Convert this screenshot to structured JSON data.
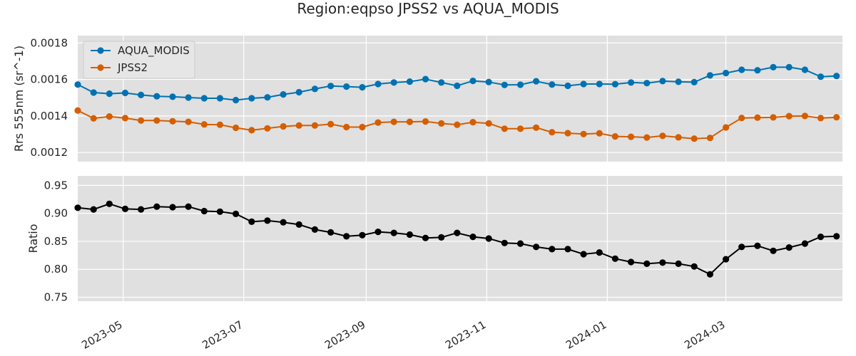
{
  "figure": {
    "title": "Region:eqpso JPSS2 vs AQUA_MODIS"
  },
  "chart_data": [
    {
      "type": "line",
      "ylabel": "Rrs 555nm (sr^-1)",
      "xlabel": "",
      "ylim": [
        0.00115,
        0.00184
      ],
      "xlim": [
        "2023-04-08",
        "2024-04-29"
      ],
      "yticks": [
        "0.0012",
        "0.0014",
        "0.0016",
        "0.0018"
      ],
      "grid": true,
      "legend": "top-left",
      "x": [
        "2023-04-08",
        "2023-04-16",
        "2023-04-24",
        "2023-05-02",
        "2023-05-10",
        "2023-05-18",
        "2023-05-26",
        "2023-06-03",
        "2023-06-11",
        "2023-06-19",
        "2023-06-27",
        "2023-07-05",
        "2023-07-13",
        "2023-07-21",
        "2023-07-29",
        "2023-08-06",
        "2023-08-14",
        "2023-08-22",
        "2023-08-30",
        "2023-09-07",
        "2023-09-15",
        "2023-09-23",
        "2023-10-01",
        "2023-10-09",
        "2023-10-17",
        "2023-10-25",
        "2023-11-02",
        "2023-11-10",
        "2023-11-18",
        "2023-11-26",
        "2023-12-04",
        "2023-12-12",
        "2023-12-20",
        "2023-12-28",
        "2024-01-05",
        "2024-01-13",
        "2024-01-21",
        "2024-01-29",
        "2024-02-06",
        "2024-02-14",
        "2024-02-22",
        "2024-03-01",
        "2024-03-09",
        "2024-03-17",
        "2024-03-25",
        "2024-04-02",
        "2024-04-10",
        "2024-04-18",
        "2024-04-26"
      ],
      "series": [
        {
          "name": "AQUA_MODIS",
          "color": "#0072b2",
          "values": [
            0.001572,
            0.001528,
            0.001522,
            0.001526,
            0.001515,
            0.001508,
            0.001505,
            0.001501,
            0.001497,
            0.001497,
            0.001487,
            0.001497,
            0.001502,
            0.001518,
            0.00153,
            0.001548,
            0.001564,
            0.001561,
            0.001557,
            0.001575,
            0.001583,
            0.001588,
            0.001602,
            0.001583,
            0.001565,
            0.001592,
            0.001586,
            0.00157,
            0.001571,
            0.00159,
            0.001572,
            0.001565,
            0.001575,
            0.001575,
            0.001574,
            0.001583,
            0.00158,
            0.001591,
            0.001587,
            0.001585,
            0.001622,
            0.001635,
            0.001653,
            0.00165,
            0.001667,
            0.001667,
            0.001653,
            0.001615,
            0.001619
          ]
        },
        {
          "name": "JPSS2",
          "color": "#d55e00",
          "values": [
            0.00143,
            0.001387,
            0.001397,
            0.001388,
            0.001375,
            0.001375,
            0.001371,
            0.001368,
            0.001354,
            0.001352,
            0.001335,
            0.001322,
            0.001332,
            0.001343,
            0.001348,
            0.001348,
            0.001355,
            0.001339,
            0.001339,
            0.001364,
            0.001368,
            0.001368,
            0.00137,
            0.001359,
            0.001352,
            0.001366,
            0.001359,
            0.00133,
            0.00133,
            0.001336,
            0.001311,
            0.001306,
            0.001301,
            0.001305,
            0.001288,
            0.001286,
            0.001282,
            0.001291,
            0.001283,
            0.001276,
            0.00128,
            0.001337,
            0.001389,
            0.001391,
            0.001392,
            0.001399,
            0.0014,
            0.001388,
            0.001393
          ]
        }
      ]
    },
    {
      "type": "line",
      "ylabel": "Ratio",
      "xlabel": "",
      "ylim": [
        0.743,
        0.967
      ],
      "xlim": [
        "2023-04-08",
        "2024-04-29"
      ],
      "yticks": [
        "0.75",
        "0.80",
        "0.85",
        "0.90",
        "0.95"
      ],
      "xticks": [
        "2023-05",
        "2023-07",
        "2023-09",
        "2023-11",
        "2024-01",
        "2024-03"
      ],
      "grid": true,
      "series": [
        {
          "color": "#000000",
          "values": [
            0.91,
            0.907,
            0.917,
            0.908,
            0.907,
            0.912,
            0.911,
            0.912,
            0.904,
            0.903,
            0.899,
            0.885,
            0.887,
            0.884,
            0.88,
            0.871,
            0.866,
            0.859,
            0.861,
            0.867,
            0.865,
            0.862,
            0.856,
            0.857,
            0.865,
            0.858,
            0.855,
            0.847,
            0.846,
            0.84,
            0.836,
            0.836,
            0.827,
            0.83,
            0.819,
            0.813,
            0.81,
            0.812,
            0.81,
            0.805,
            0.791,
            0.818,
            0.84,
            0.842,
            0.833,
            0.839,
            0.846,
            0.858,
            0.859
          ]
        }
      ]
    }
  ]
}
